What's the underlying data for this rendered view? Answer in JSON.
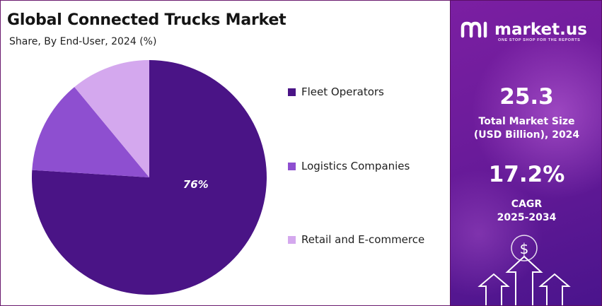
{
  "chart_data": {
    "type": "pie",
    "title": "Global Connected Trucks Market",
    "subtitle": "Share, By End-User, 2024 (%)",
    "legend_position": "right",
    "slices": [
      {
        "label": "Fleet Operators",
        "value": 76,
        "data_label": "76%",
        "color": "#4a1486"
      },
      {
        "label": "Logistics Companies",
        "value": 13,
        "data_label": "",
        "color": "#8e4fd0"
      },
      {
        "label": "Retail and E-commerce",
        "value": 11,
        "data_label": "",
        "color": "#d4a8ee"
      }
    ]
  },
  "sidebar": {
    "brand": "market.us",
    "tagline": "ONE STOP SHOP FOR THE REPORTS",
    "logo_icon": "market-us-logo-icon",
    "stats": [
      {
        "value": "25.3",
        "label_line1": "Total Market Size",
        "label_line2": "(USD Billion), 2024"
      },
      {
        "value": "17.2%",
        "label_line1": "CAGR",
        "label_line2": "2025-2034"
      }
    ],
    "decor_icons": [
      "dollar-icon",
      "arrow-up-icon"
    ]
  }
}
